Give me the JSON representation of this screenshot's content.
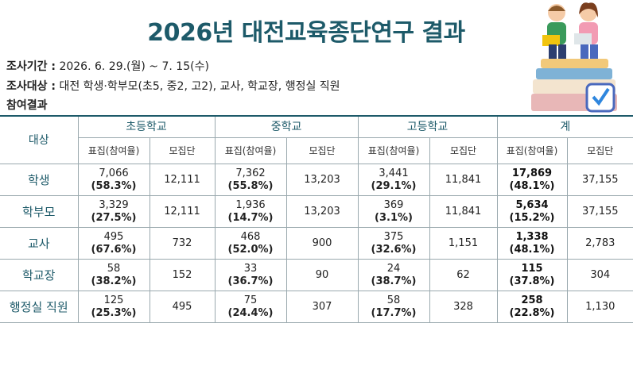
{
  "header": {
    "title": "2026년 대전교육종단연구 결과",
    "period_label": "조사기간 :",
    "period": "2026. 6. 29.(월) ~ 7. 15(수)",
    "target_label": "조사대상 :",
    "target": "대전 학생·학부모(초5, 중2, 고2), 교사, 학교장, 행정실 직원",
    "results_label": "참여결과"
  },
  "table": {
    "corner": "대상",
    "groups": [
      "초등학교",
      "중학교",
      "고등학교",
      "계"
    ],
    "sub": [
      "표집(참여율)",
      "모집단"
    ],
    "rows": [
      {
        "label": "학생",
        "cells": [
          [
            "7,066",
            "(58.3%)",
            "12,111"
          ],
          [
            "7,362",
            "(55.8%)",
            "13,203"
          ],
          [
            "3,441",
            "(29.1%)",
            "11,841"
          ],
          [
            "17,869",
            "(48.1%)",
            "37,155"
          ]
        ]
      },
      {
        "label": "학부모",
        "cells": [
          [
            "3,329",
            "(27.5%)",
            "12,111"
          ],
          [
            "1,936",
            "(14.7%)",
            "13,203"
          ],
          [
            "369",
            "(3.1%)",
            "11,841"
          ],
          [
            "5,634",
            "(15.2%)",
            "37,155"
          ]
        ]
      },
      {
        "label": "교사",
        "cells": [
          [
            "495",
            "(67.6%)",
            "732"
          ],
          [
            "468",
            "(52.0%)",
            "900"
          ],
          [
            "375",
            "(32.6%)",
            "1,151"
          ],
          [
            "1,338",
            "(48.1%)",
            "2,783"
          ]
        ]
      },
      {
        "label": "학교장",
        "cells": [
          [
            "58",
            "(38.2%)",
            "152"
          ],
          [
            "33",
            "(36.7%)",
            "90"
          ],
          [
            "24",
            "(38.7%)",
            "62"
          ],
          [
            "115",
            "(37.8%)",
            "304"
          ]
        ]
      },
      {
        "label": "행정실 직원",
        "cells": [
          [
            "125",
            "(25.3%)",
            "495"
          ],
          [
            "75",
            "(24.4%)",
            "307"
          ],
          [
            "58",
            "(17.7%)",
            "328"
          ],
          [
            "258",
            "(22.8%)",
            "1,130"
          ]
        ]
      }
    ]
  }
}
